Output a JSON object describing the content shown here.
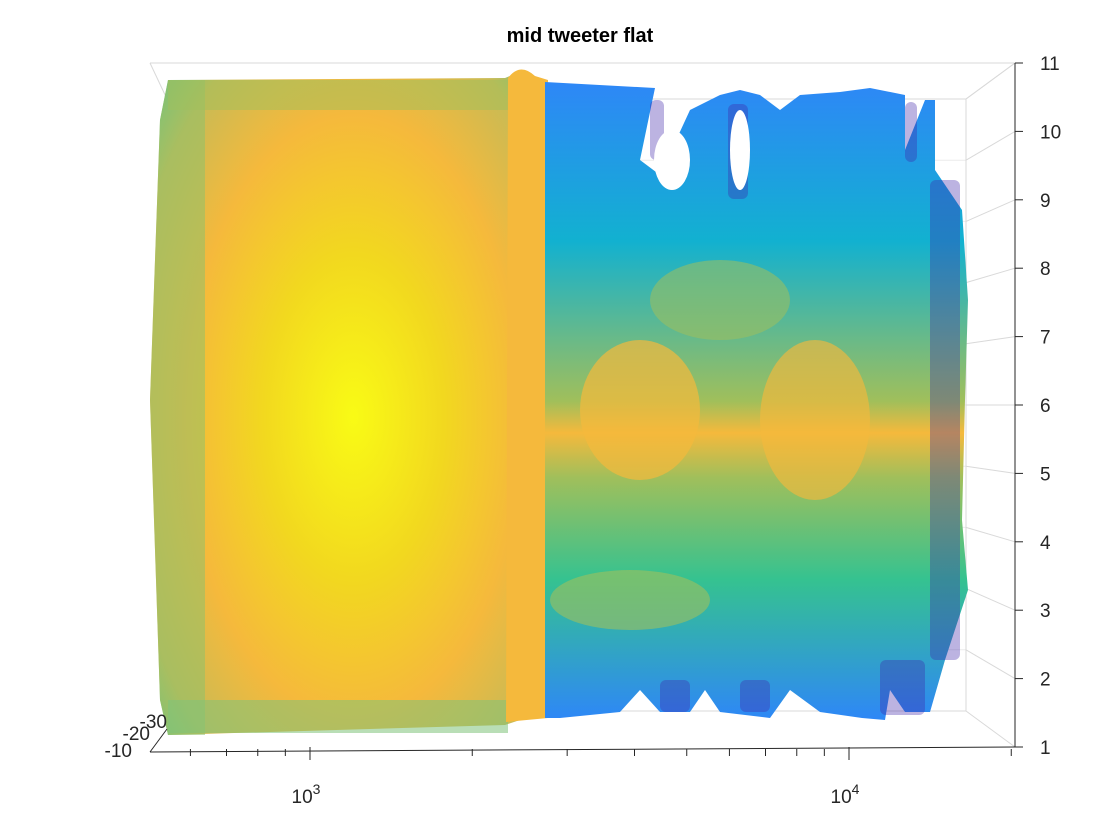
{
  "chart_data": {
    "type": "surface3d",
    "title": "mid tweeter flat",
    "xlabel": "",
    "ylabel": "",
    "zlabel": "",
    "x_scale": "log",
    "x_ticks": [
      {
        "value": 1000,
        "base": "10",
        "exp": "3"
      },
      {
        "value": 10000,
        "base": "10",
        "exp": "4"
      }
    ],
    "y_ticks": [
      "1",
      "2",
      "3",
      "4",
      "5",
      "6",
      "7",
      "8",
      "9",
      "10",
      "11"
    ],
    "z_ticks": [
      "-10",
      "-20",
      "-30"
    ],
    "colormap": "parula",
    "colormap_stops": [
      "#3e26a8",
      "#2e87f7",
      "#12b1d0",
      "#35c290",
      "#a0bf5b",
      "#f5b93c",
      "#f9fb15"
    ],
    "bands": [
      {
        "x_from": 600,
        "x_to": 2400,
        "level": "high (yellow)"
      },
      {
        "x_from": 2400,
        "x_to": 2700,
        "level": "orange ridge"
      },
      {
        "x_from": 2700,
        "x_to": 17000,
        "level": "mixed blue / green with orange bands near rows 5-6"
      }
    ],
    "grid": true
  }
}
